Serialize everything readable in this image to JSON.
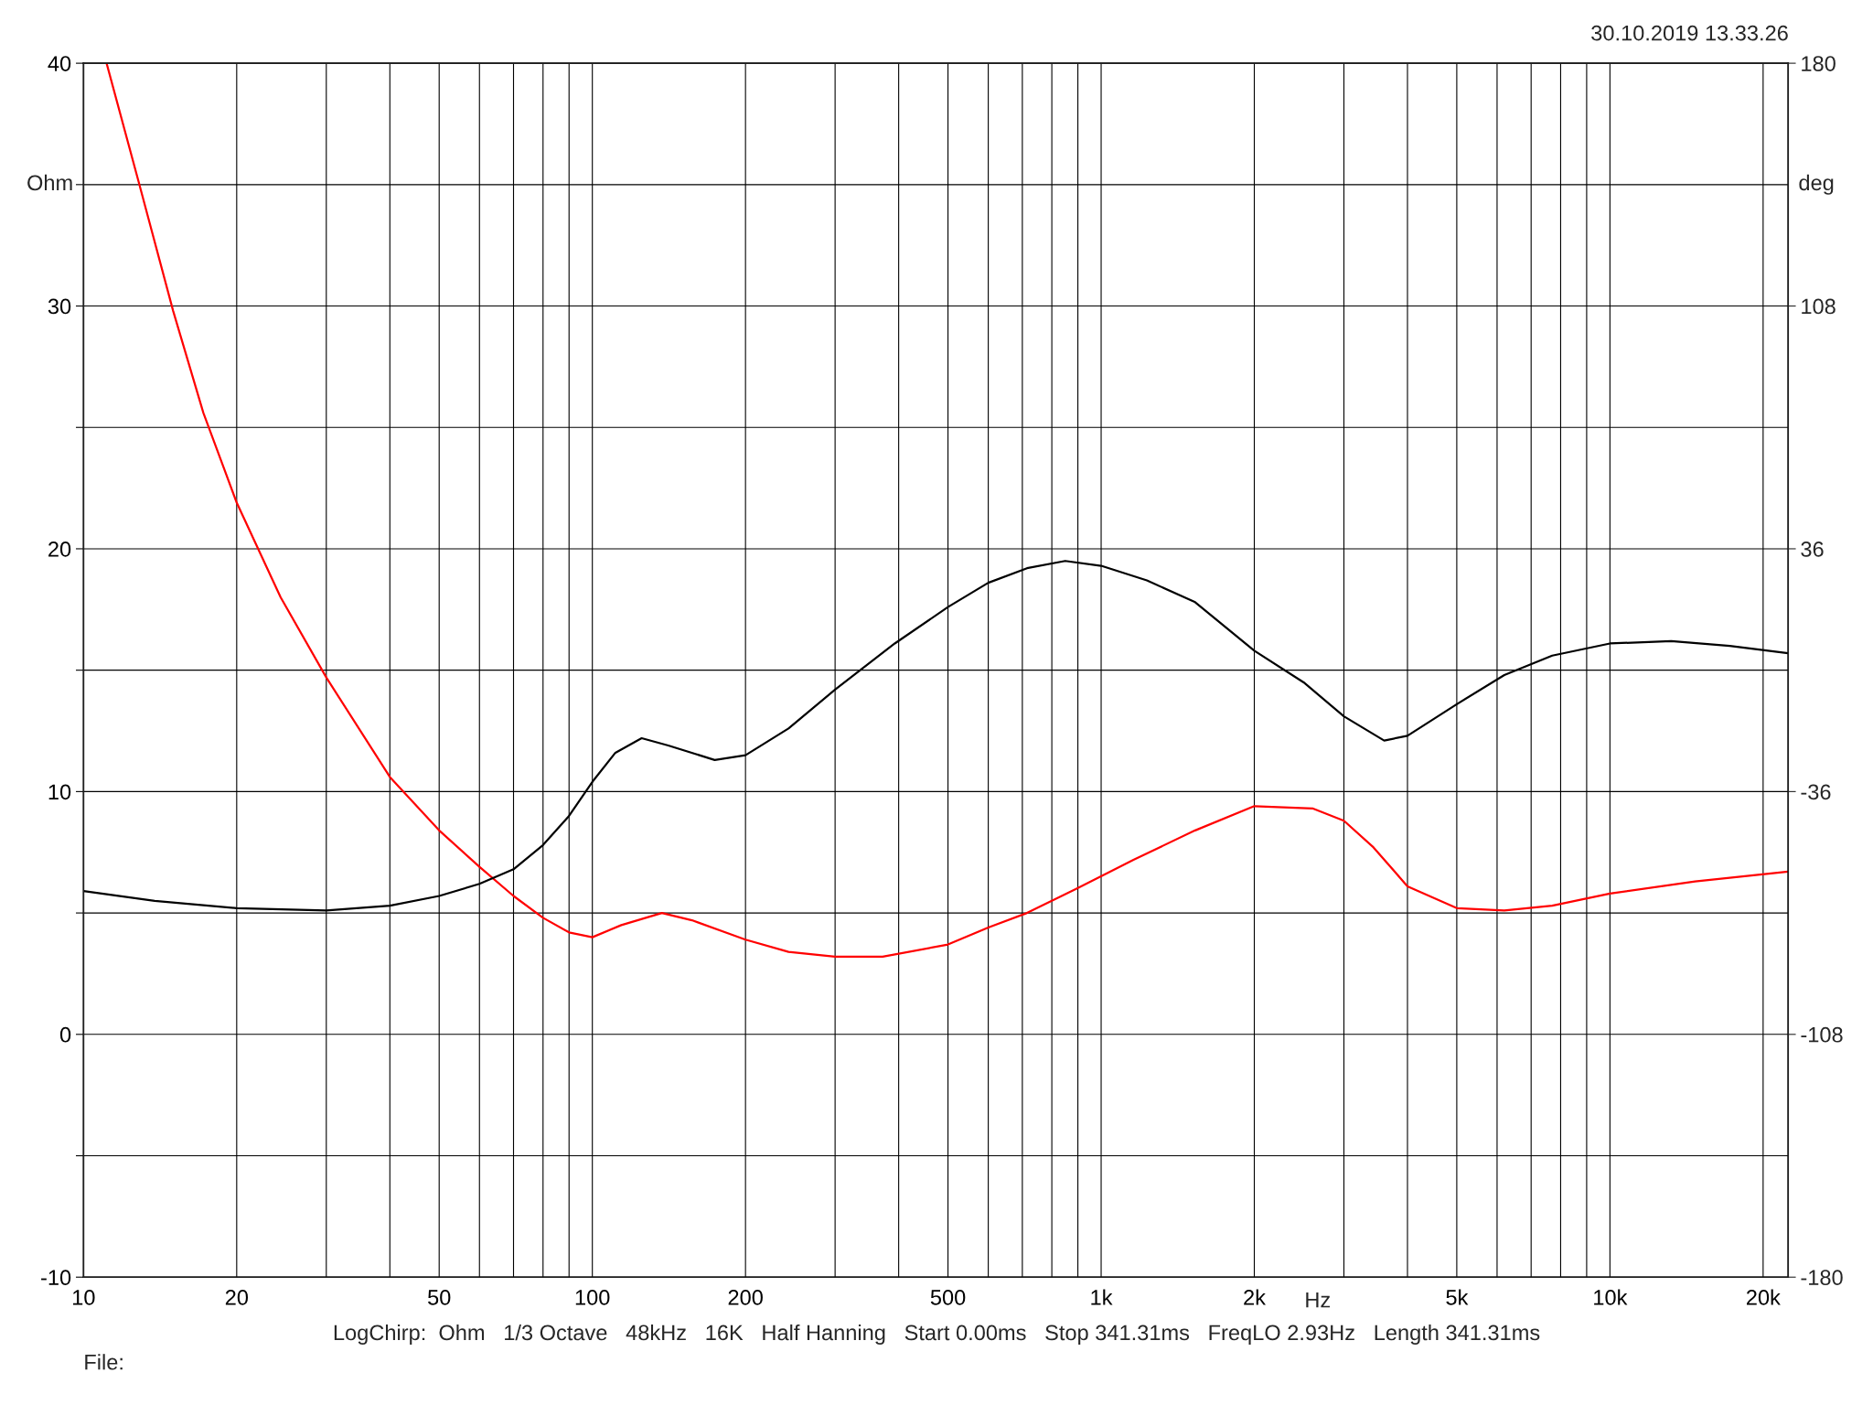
{
  "chart_data": {
    "type": "line",
    "xlabel": "Hz",
    "ylabel": "Ohm",
    "y2label": "deg",
    "annotations": [
      "30.10.2019 13.33.26",
      "LogChirp:  Ohm   1/3 Octave   48kHz   16K   Half Hanning   Start 0.00ms   Stop 341.31ms   FreqLO 2.93Hz   Length 341.31ms",
      "File:"
    ],
    "log": "x",
    "grid": true,
    "legend": false,
    "marker": "none",
    "line_style": "solid",
    "xlim": [
      10,
      22400
    ],
    "ylim": [
      -10,
      40
    ],
    "y2lim": [
      -180,
      180
    ],
    "xticks": [
      10,
      20,
      {
        "value": 30,
        "label": null
      },
      {
        "value": 40,
        "label": null
      },
      50,
      {
        "value": 60,
        "label": null
      },
      {
        "value": 70,
        "label": null
      },
      {
        "value": 80,
        "label": null
      },
      {
        "value": 90,
        "label": null
      },
      100,
      200,
      {
        "value": 300,
        "label": null
      },
      {
        "value": 400,
        "label": null
      },
      500,
      {
        "value": 600,
        "label": null
      },
      {
        "value": 700,
        "label": null
      },
      {
        "value": 800,
        "label": null
      },
      {
        "value": 900,
        "label": null
      },
      {
        "value": 1000,
        "label": "1k"
      },
      {
        "value": 2000,
        "label": "2k"
      },
      {
        "value": 3000,
        "label": null
      },
      {
        "value": 4000,
        "label": null
      },
      {
        "value": 5000,
        "label": "5k"
      },
      {
        "value": 6000,
        "label": null
      },
      {
        "value": 7000,
        "label": null
      },
      {
        "value": 8000,
        "label": null
      },
      {
        "value": 9000,
        "label": null
      },
      {
        "value": 10000,
        "label": "10k"
      },
      {
        "value": 20000,
        "label": "20k"
      }
    ],
    "yticks": [
      -10,
      {
        "value": -5,
        "label": null
      },
      0,
      {
        "value": 5,
        "label": null
      },
      10,
      {
        "value": 15,
        "label": null
      },
      20,
      {
        "value": 25,
        "label": null
      },
      30,
      {
        "value": 35,
        "label": null
      },
      40
    ],
    "y2ticks": [
      -180,
      -108,
      -36,
      36,
      108,
      180
    ],
    "series": [
      {
        "color": "#ff0000",
        "x": [
          11.1,
          12.8,
          15,
          17.2,
          20,
          24.4,
          30,
          40,
          50,
          60,
          70,
          80,
          90,
          100,
          114,
          137,
          157,
          200,
          243,
          300,
          372,
          500,
          600,
          715,
          895,
          1160,
          1530,
          2000,
          2610,
          3000,
          3430,
          4000,
          5000,
          6200,
          7700,
          10000,
          14700,
          22400
        ],
        "values": [
          40,
          35.2,
          29.8,
          25.6,
          21.9,
          18.0,
          14.7,
          10.6,
          8.4,
          6.9,
          5.7,
          4.8,
          4.2,
          4.0,
          4.5,
          5.0,
          4.7,
          3.9,
          3.4,
          3.2,
          3.2,
          3.7,
          4.4,
          5.0,
          6.0,
          7.2,
          8.4,
          9.4,
          9.3,
          8.8,
          7.7,
          6.1,
          5.2,
          5.1,
          5.3,
          5.8,
          6.3,
          6.7
        ]
      },
      {
        "color": "#000000",
        "x": [
          10,
          13.8,
          20,
          30,
          40,
          50,
          60,
          70,
          80,
          90,
          100,
          111,
          125,
          141,
          174,
          200,
          243,
          300,
          393,
          500,
          600,
          715,
          850,
          1000,
          1230,
          1530,
          2000,
          2500,
          3000,
          3600,
          4000,
          5000,
          6200,
          7700,
          10000,
          13200,
          17200,
          22400
        ],
        "values": [
          5.9,
          5.5,
          5.2,
          5.1,
          5.3,
          5.7,
          6.2,
          6.8,
          7.8,
          9.0,
          10.4,
          11.6,
          12.2,
          11.9,
          11.3,
          11.5,
          12.6,
          14.2,
          16.1,
          17.6,
          18.6,
          19.2,
          19.5,
          19.3,
          18.7,
          17.8,
          15.8,
          14.5,
          13.1,
          12.1,
          12.3,
          13.6,
          14.8,
          15.6,
          16.1,
          16.2,
          16.0,
          15.7
        ]
      }
    ]
  }
}
